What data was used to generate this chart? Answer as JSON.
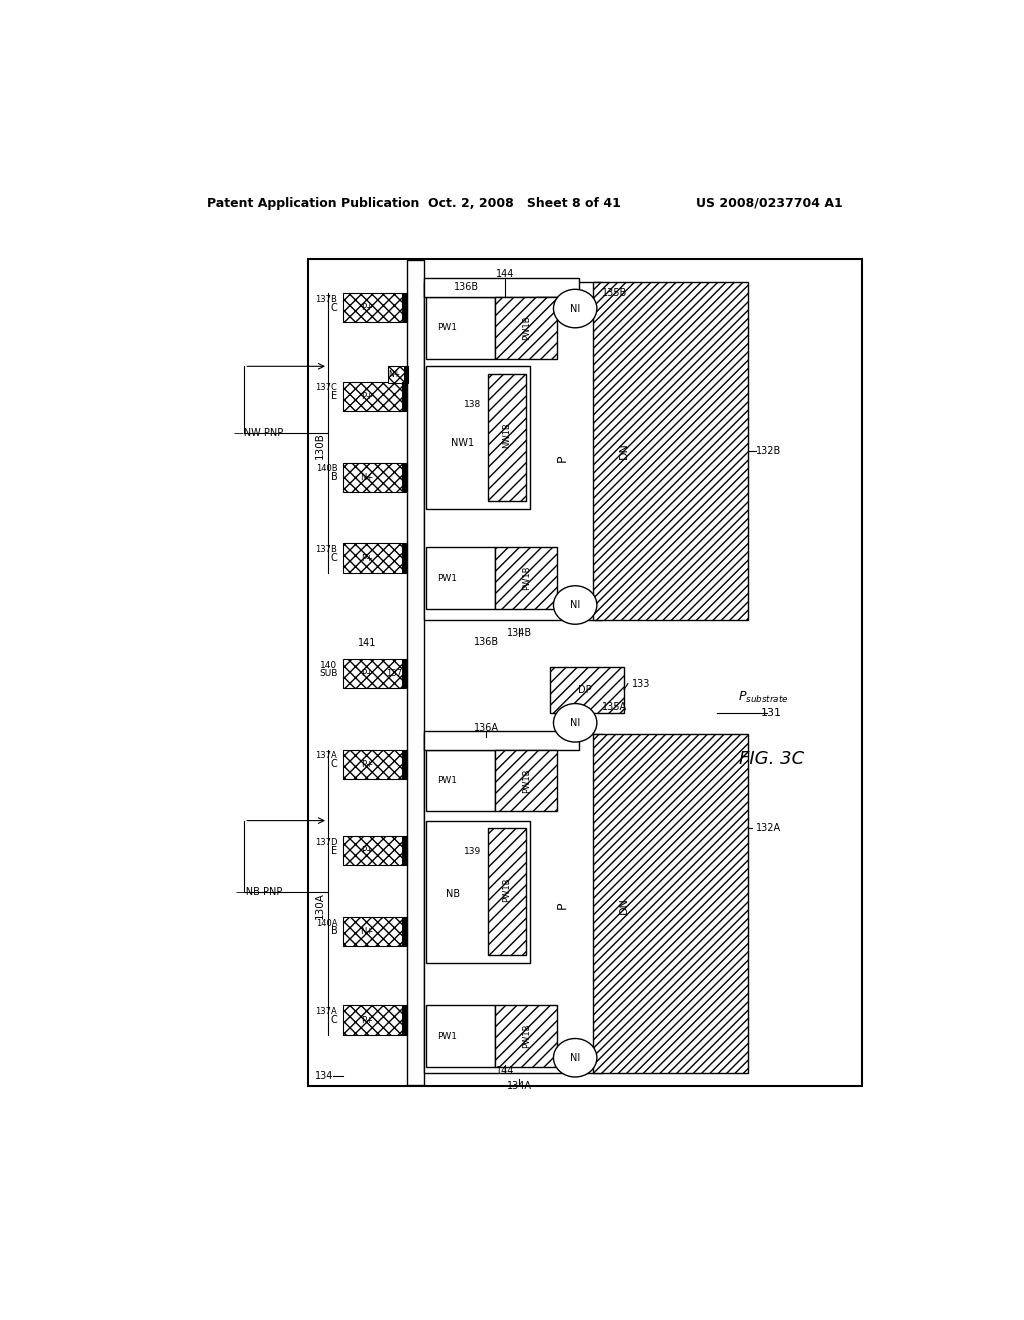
{
  "bg": "#ffffff",
  "header_left": "Patent Application Publication",
  "header_mid": "Oct. 2, 2008   Sheet 8 of 41",
  "header_right": "US 2008/0237704 A1",
  "fig_caption": "FIG. 3C",
  "border": [
    232,
    130,
    715,
    1075
  ]
}
